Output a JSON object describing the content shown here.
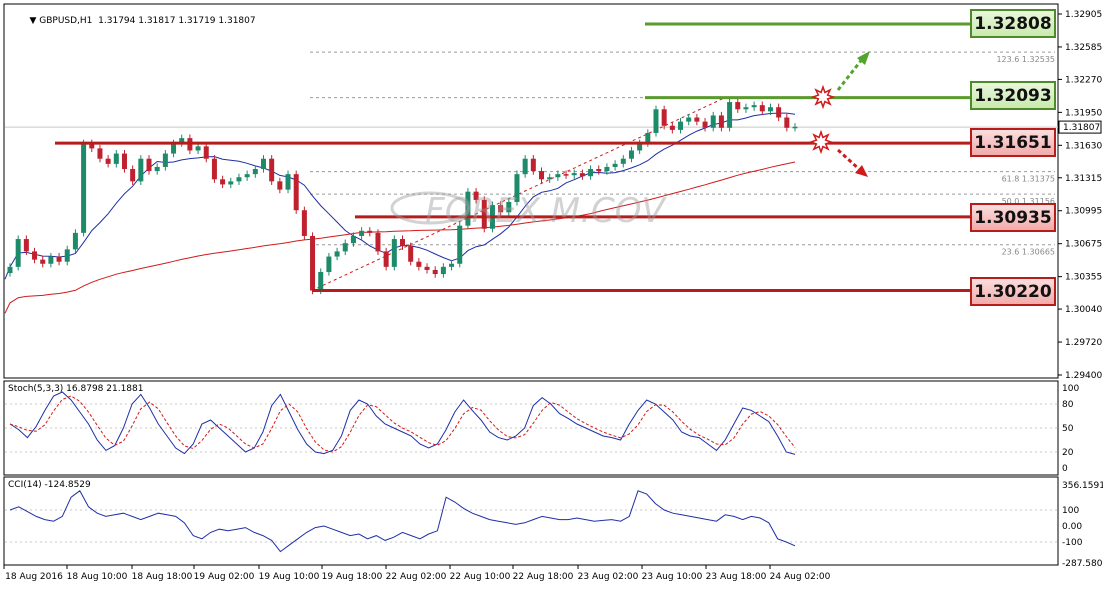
{
  "header": {
    "symbol": "GBPUSD,H1",
    "ohlc": "1.31794 1.31817 1.31719 1.31807"
  },
  "main_scale": [
    "1.32905",
    "1.32585",
    "1.32270",
    "1.31950",
    "1.31630",
    "1.31315",
    "1.30995",
    "1.30675",
    "1.30355",
    "1.30040",
    "1.29720",
    "1.29400"
  ],
  "current_price": "1.31807",
  "levels": [
    {
      "value": "1.32808",
      "kind": "resistance"
    },
    {
      "value": "1.32093",
      "kind": "resistance"
    },
    {
      "value": "1.31651",
      "kind": "support"
    },
    {
      "value": "1.30935",
      "kind": "support"
    },
    {
      "value": "1.30220",
      "kind": "support"
    }
  ],
  "fib_labels": [
    {
      "ratio": "123.6",
      "price": "1.32535"
    },
    {
      "ratio": "61.8",
      "price": "1.31375"
    },
    {
      "ratio": "50.0",
      "price": "1.31156"
    },
    {
      "ratio": "23.6",
      "price": "1.30665"
    }
  ],
  "watermark": "FOREX.M.COV",
  "stoch": {
    "label": "Stoch(5,3,3) 16.8798 21.1881",
    "scale": [
      "100",
      "80",
      "50",
      "20",
      "0"
    ]
  },
  "cci": {
    "label": "CCI(14) -124.8529",
    "scale": [
      "356.1591",
      "100",
      "0.00",
      "-100",
      "-287.5801"
    ]
  },
  "x_axis": [
    "18 Aug 2016",
    "18 Aug 10:00",
    "18 Aug 18:00",
    "19 Aug 02:00",
    "19 Aug 10:00",
    "19 Aug 18:00",
    "22 Aug 02:00",
    "22 Aug 10:00",
    "22 Aug 18:00",
    "23 Aug 02:00",
    "23 Aug 10:00",
    "23 Aug 18:00",
    "24 Aug 02:00"
  ],
  "colors": {
    "bull": "#1d8b6a",
    "bear": "#c0212f",
    "ma_fast": "#1f2fa8",
    "ma_slow": "#d11a1a",
    "green_line": "#5a9a2e",
    "red_line": "#b51c1c"
  }
}
